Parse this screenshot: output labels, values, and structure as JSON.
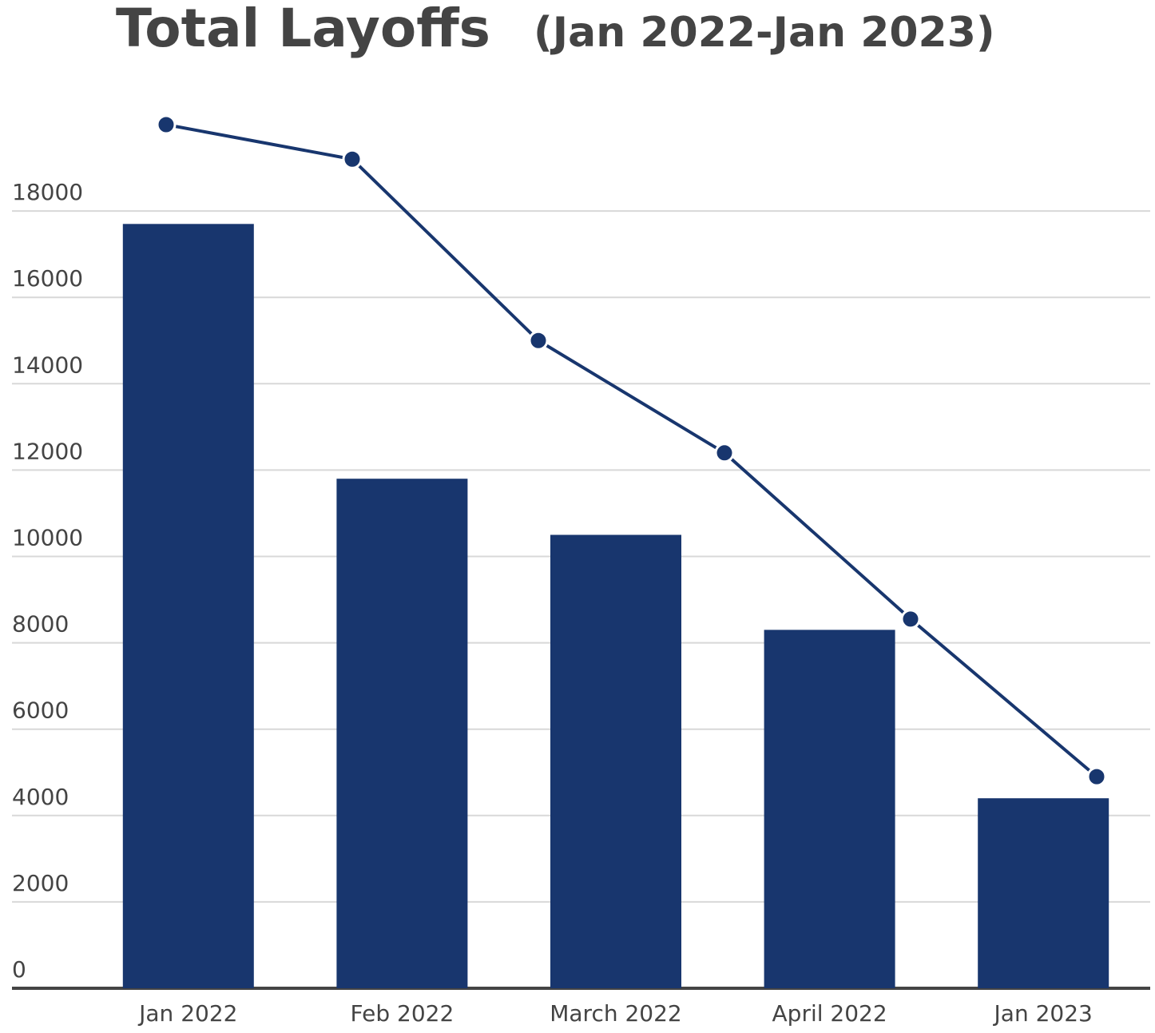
{
  "chart_data": [
    {
      "type": "bar",
      "title": "Total Layoffs",
      "subtitle": "(Jan 2022-Jan 2023)",
      "categories": [
        "Jan 2022",
        "Feb 2022",
        "March 2022",
        "April 2022",
        "Jan 2023"
      ],
      "values": [
        17700,
        11800,
        10500,
        8300,
        4400
      ],
      "color": "#18366e",
      "ylim": [
        0,
        20000
      ],
      "yticks": [
        0,
        2000,
        4000,
        6000,
        8000,
        10000,
        12000,
        14000,
        16000,
        18000
      ],
      "grid": true
    },
    {
      "type": "line",
      "categories": [
        null,
        null,
        null,
        null,
        null,
        null
      ],
      "values": [
        20000,
        19200,
        15000,
        12400,
        8550,
        4900
      ],
      "color": "#18366e",
      "ylim": [
        0,
        20000
      ]
    }
  ]
}
